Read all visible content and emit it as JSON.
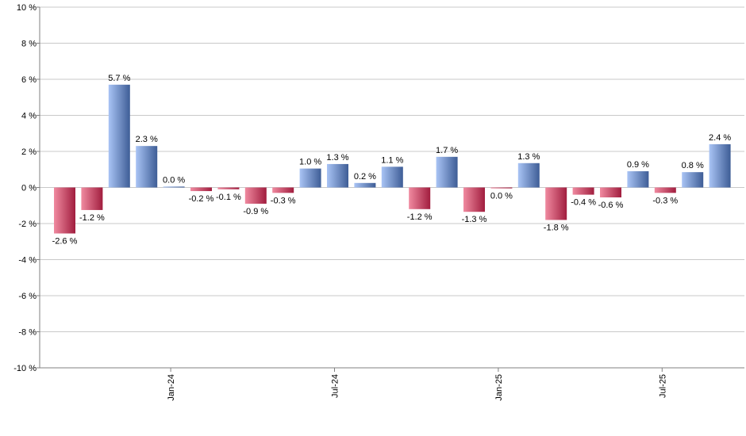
{
  "chart_data": {
    "type": "bar",
    "title": "",
    "xlabel": "",
    "ylabel": "",
    "ylim": [
      -10,
      10
    ],
    "ytick_step": 2,
    "y_unit_suffix": " %",
    "grid": true,
    "legend": "none",
    "colors": {
      "positive_light": "#a9c4f5",
      "positive_dark": "#3e5d96",
      "negative_light": "#f08aa0",
      "negative_dark": "#a11d3e"
    },
    "x_ticks": [
      {
        "label": "Jan-24",
        "index": 4
      },
      {
        "label": "Jul-24",
        "index": 10
      },
      {
        "label": "Jan-25",
        "index": 16
      },
      {
        "label": "Jul-25",
        "index": 22
      }
    ],
    "values": [
      -2.55,
      -1.25,
      5.7,
      2.3,
      0.05,
      -0.2,
      -0.1,
      -0.9,
      -0.3,
      1.05,
      1.3,
      0.25,
      1.15,
      -1.2,
      1.7,
      -1.35,
      -0.05,
      1.35,
      -1.8,
      -0.4,
      -0.55,
      0.9,
      -0.3,
      0.85,
      2.4
    ],
    "labels": [
      "-2.6 %",
      "-1.2 %",
      "5.7 %",
      "2.3 %",
      "0.0 %",
      "-0.2 %",
      "-0.1 %",
      "-0.9 %",
      "-0.3 %",
      "1.0 %",
      "1.3 %",
      "0.2 %",
      "1.1 %",
      "-1.2 %",
      "1.7 %",
      "-1.3 %",
      "0.0 %",
      "1.3 %",
      "-1.8 %",
      "-0.4 %",
      "-0.6 %",
      "0.9 %",
      "-0.3 %",
      "0.8 %",
      "2.4 %"
    ]
  }
}
